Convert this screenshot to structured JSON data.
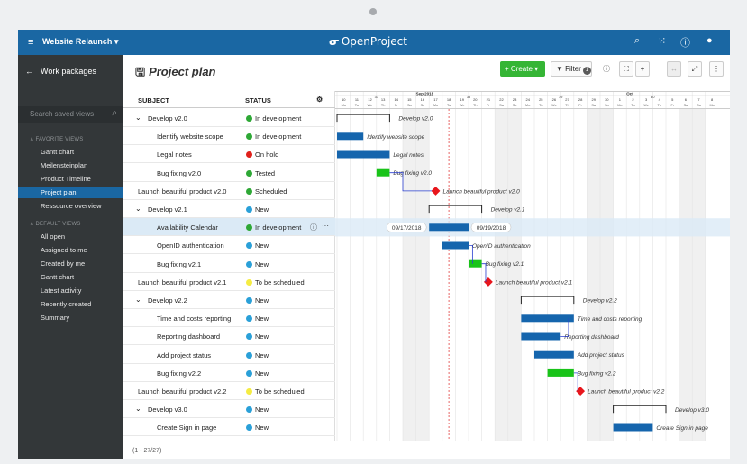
{
  "topbar": {
    "menu_icon": "hamburger-icon",
    "project": "Website Relaunch ▾",
    "logo": "OpenProject",
    "icons": [
      "search-icon",
      "grid-icon",
      "help-icon",
      "user-icon"
    ]
  },
  "sidebar": {
    "back": "←",
    "title": "Work packages",
    "search_placeholder": "Search saved views",
    "favorite_header": "FAVORITE VIEWS",
    "favorites": [
      {
        "label": "Gantt chart"
      },
      {
        "label": "Meilensteinplan"
      },
      {
        "label": "Product Timeline"
      },
      {
        "label": "Project plan"
      },
      {
        "label": "Ressource overview"
      }
    ],
    "default_header": "DEFAULT VIEWS",
    "defaults": [
      {
        "label": "All open"
      },
      {
        "label": "Assigned to me"
      },
      {
        "label": "Created by me"
      },
      {
        "label": "Gantt chart"
      },
      {
        "label": "Latest activity"
      },
      {
        "label": "Recently created"
      },
      {
        "label": "Summary"
      }
    ]
  },
  "page": {
    "title": "Project plan",
    "create": "+ Create ▾",
    "filter": "Filter",
    "filter_count": "1"
  },
  "table": {
    "col_subject": "SUBJECT",
    "col_status": "STATUS",
    "rows": [
      {
        "subject": "Develop v2.0",
        "status": "In development",
        "color": "#2ea836",
        "level": 0,
        "group": true
      },
      {
        "subject": "Identify website scope",
        "status": "In development",
        "color": "#2ea836",
        "level": 1
      },
      {
        "subject": "Legal notes",
        "status": "On hold",
        "color": "#e0201b",
        "level": 1
      },
      {
        "subject": "Bug fixing v2.0",
        "status": "Tested",
        "color": "#2ea836",
        "level": 1
      },
      {
        "subject": "Launch beautiful product v2.0",
        "status": "Scheduled",
        "color": "#2ea836",
        "level": 0
      },
      {
        "subject": "Develop v2.1",
        "status": "New",
        "color": "#2aa0d8",
        "level": 0,
        "group": true
      },
      {
        "subject": "Availability Calendar",
        "status": "In development",
        "color": "#2ea836",
        "level": 1,
        "selected": true
      },
      {
        "subject": "OpenID authentication",
        "status": "New",
        "color": "#2aa0d8",
        "level": 1
      },
      {
        "subject": "Bug fixing v2.1",
        "status": "New",
        "color": "#2aa0d8",
        "level": 1
      },
      {
        "subject": "Launch beautiful product v2.1",
        "status": "To be scheduled",
        "color": "#f5ec43",
        "level": 0
      },
      {
        "subject": "Develop v2.2",
        "status": "New",
        "color": "#2aa0d8",
        "level": 0,
        "group": true
      },
      {
        "subject": "Time and costs reporting",
        "status": "New",
        "color": "#2aa0d8",
        "level": 1
      },
      {
        "subject": "Reporting dashboard",
        "status": "New",
        "color": "#2aa0d8",
        "level": 1
      },
      {
        "subject": "Add project status",
        "status": "New",
        "color": "#2aa0d8",
        "level": 1
      },
      {
        "subject": "Bug fixing v2.2",
        "status": "New",
        "color": "#2aa0d8",
        "level": 1
      },
      {
        "subject": "Launch beautiful product v2.2",
        "status": "To be scheduled",
        "color": "#f5ec43",
        "level": 0
      },
      {
        "subject": "Develop v3.0",
        "status": "New",
        "color": "#2aa0d8",
        "level": 0,
        "group": true
      },
      {
        "subject": "Create Sign in page",
        "status": "New",
        "color": "#2aa0d8",
        "level": 1
      }
    ],
    "count": "(1 - 27/27)"
  },
  "gantt": {
    "month": "Sep 2018",
    "month2": "Oct",
    "weeks": [
      "37",
      "38",
      "39",
      "40"
    ],
    "days": [
      "10",
      "11",
      "12",
      "13",
      "14",
      "15",
      "16",
      "17",
      "18",
      "19",
      "20",
      "21",
      "22",
      "23",
      "24",
      "25",
      "26",
      "27",
      "28",
      "29",
      "30",
      "1",
      "2",
      "3",
      "4",
      "5",
      "6",
      "7",
      "8"
    ],
    "weekdays": [
      "Mo",
      "Tu",
      "We",
      "Th",
      "Fr",
      "Sa",
      "Su",
      "Mo",
      "Tu",
      "We",
      "Th",
      "Fr",
      "Sa",
      "Su",
      "Mo",
      "Tu",
      "We",
      "Th",
      "Fr",
      "Sa",
      "Su",
      "Mo",
      "Tu",
      "We",
      "Th",
      "Fr",
      "Sa",
      "Su",
      "Mo"
    ],
    "start_label": "09/17/2018",
    "end_label": "09/19/2018",
    "items": [
      {
        "type": "group",
        "start": 0,
        "end": 4,
        "label": "Develop v2.0"
      },
      {
        "type": "bar",
        "start": 0,
        "end": 2,
        "label": "Identify website scope",
        "color": "#1565ad"
      },
      {
        "type": "bar",
        "start": 0,
        "end": 4,
        "label": "Legal notes",
        "color": "#1565ad"
      },
      {
        "type": "bar",
        "start": 3,
        "end": 4,
        "label": "Bug fixing v2.0",
        "color": "#19c319"
      },
      {
        "type": "milestone",
        "start": 7.5,
        "label": "Launch beautiful product v2.0"
      },
      {
        "type": "group",
        "start": 7,
        "end": 11,
        "label": "Develop v2.1"
      },
      {
        "type": "bar",
        "start": 7,
        "end": 10,
        "label": "",
        "color": "#1565ad"
      },
      {
        "type": "bar",
        "start": 8,
        "end": 10,
        "label": "OpenID authentication",
        "color": "#1565ad"
      },
      {
        "type": "bar",
        "start": 10,
        "end": 11,
        "label": "Bug fixing v2.1",
        "color": "#19c319"
      },
      {
        "type": "milestone",
        "start": 11.5,
        "label": "Launch beautiful product v2.1"
      },
      {
        "type": "group",
        "start": 14,
        "end": 18,
        "label": "Develop v2.2"
      },
      {
        "type": "bar",
        "start": 14,
        "end": 18,
        "label": "Time and costs reporting",
        "color": "#1565ad"
      },
      {
        "type": "bar",
        "start": 14,
        "end": 17,
        "label": "Reporting dashboard",
        "color": "#1565ad"
      },
      {
        "type": "bar",
        "start": 15,
        "end": 18,
        "label": "Add project status",
        "color": "#1565ad"
      },
      {
        "type": "bar",
        "start": 16,
        "end": 18,
        "label": "Bug fixing v2.2",
        "color": "#19c319"
      },
      {
        "type": "milestone",
        "start": 18.5,
        "label": "Launch beautiful product v2.2"
      },
      {
        "type": "group",
        "start": 21,
        "end": 25,
        "label": "Develop v3.0"
      },
      {
        "type": "bar",
        "start": 21,
        "end": 24,
        "label": "Create Sign in page",
        "color": "#1565ad"
      }
    ]
  }
}
